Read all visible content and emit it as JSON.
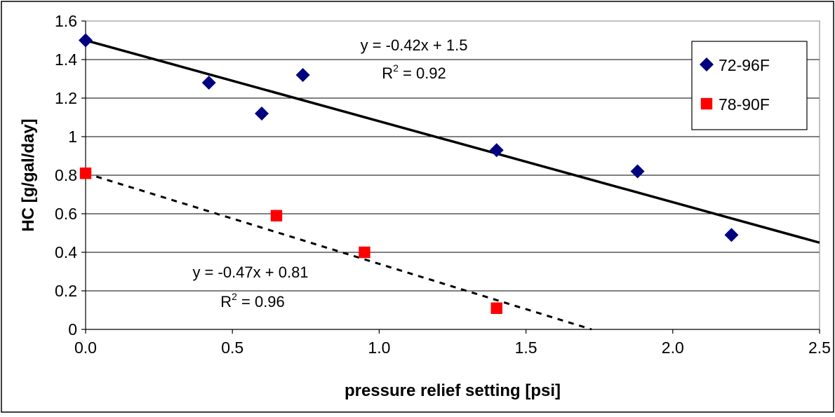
{
  "chart_data": {
    "type": "scatter",
    "xlabel": "pressure relief setting [psi]",
    "ylabel": "HC [g/gal/day]",
    "xlim": [
      0,
      2.5
    ],
    "ylim": [
      0,
      1.6
    ],
    "x_ticks": [
      "0.0",
      "0.5",
      "1.0",
      "1.5",
      "2.0",
      "2.5"
    ],
    "y_ticks": [
      "0",
      "0.2",
      "0.4",
      "0.6",
      "0.8",
      "1",
      "1.2",
      "1.4",
      "1.6"
    ],
    "grid": "horizontal",
    "legend": "top-right",
    "series": [
      {
        "name": "72-96F",
        "marker": "diamond",
        "color": "#000080",
        "points": [
          [
            0.0,
            1.5
          ],
          [
            0.42,
            1.28
          ],
          [
            0.6,
            1.12
          ],
          [
            0.74,
            1.32
          ],
          [
            1.4,
            0.93
          ],
          [
            1.88,
            0.82
          ],
          [
            2.2,
            0.49
          ]
        ],
        "trendline": {
          "slope": -0.42,
          "intercept": 1.5,
          "style": "solid",
          "equation_prefix": "y = -0.42x + 1.5",
          "r2_prefix": "R",
          "r2_sup": "2",
          "r2_suffix": " = 0.92"
        }
      },
      {
        "name": "78-90F",
        "marker": "square",
        "color": "#ff0000",
        "points": [
          [
            0.0,
            0.81
          ],
          [
            0.65,
            0.59
          ],
          [
            0.95,
            0.4
          ],
          [
            1.4,
            0.11
          ]
        ],
        "trendline": {
          "slope": -0.47,
          "intercept": 0.81,
          "style": "dashed",
          "equation_prefix": "y = -0.47x + 0.81",
          "r2_prefix": "R",
          "r2_sup": "2",
          "r2_suffix": " = 0.96"
        }
      }
    ]
  }
}
